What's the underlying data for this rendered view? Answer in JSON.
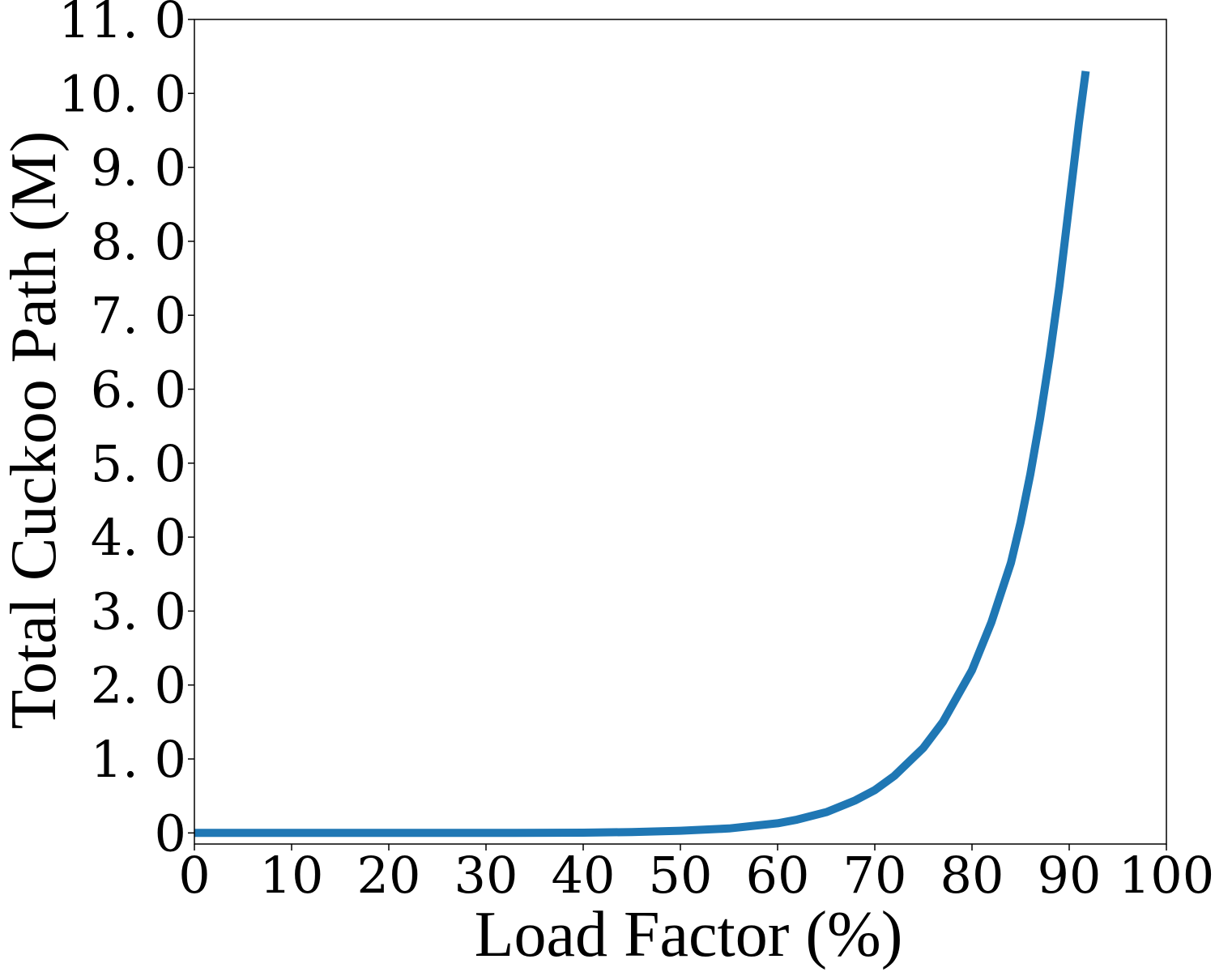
{
  "chart_data": {
    "type": "line",
    "xlabel": "Load Factor  (%)",
    "ylabel": "Total Cuckoo Path  (M)",
    "xlim": [
      0,
      100
    ],
    "ylim": [
      -0.15,
      11.0
    ],
    "x_ticks": [
      0,
      10,
      20,
      30,
      40,
      50,
      60,
      70,
      80,
      90,
      100
    ],
    "x_tick_labels": [
      "0",
      "10",
      "20",
      "30",
      "40",
      "50",
      "60",
      "70",
      "80",
      "90",
      "100"
    ],
    "y_ticks": [
      0,
      1,
      2,
      3,
      4,
      5,
      6,
      7,
      8,
      9,
      10,
      11
    ],
    "y_tick_labels": [
      "0",
      "1. 0",
      "2. 0",
      "3. 0",
      "4. 0",
      "5. 0",
      "6. 0",
      "7. 0",
      "8. 0",
      "9. 0",
      "10. 0",
      "11. 0"
    ],
    "grid": false,
    "legend": "none",
    "series": [
      {
        "color": "#1f77b4",
        "x": [
          0,
          10,
          20,
          30,
          40,
          45,
          50,
          55,
          60,
          62,
          65,
          68,
          70,
          72,
          75,
          77,
          80,
          82,
          84,
          85,
          86,
          87,
          88,
          89,
          90,
          91,
          91.7
        ],
        "y": [
          0,
          0,
          0,
          0,
          0.003,
          0.012,
          0.03,
          0.06,
          0.13,
          0.18,
          0.28,
          0.44,
          0.58,
          0.77,
          1.15,
          1.5,
          2.2,
          2.85,
          3.65,
          4.2,
          4.85,
          5.6,
          6.45,
          7.4,
          8.5,
          9.6,
          10.3
        ]
      }
    ]
  }
}
